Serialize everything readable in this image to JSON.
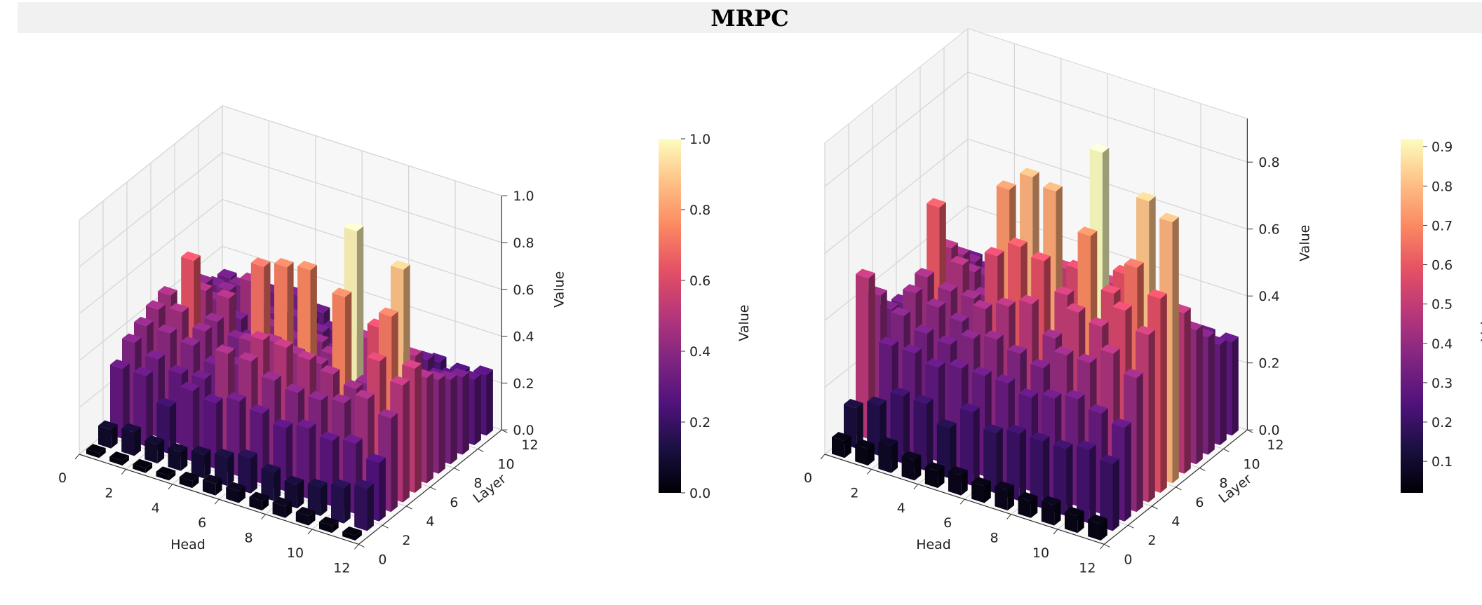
{
  "figure": {
    "title": "MRPC"
  },
  "chart_data": [
    {
      "type": "bar3d",
      "title": "",
      "xlabel": "Head",
      "ylabel": "Layer",
      "zlabel": "Value",
      "x_ticks": [
        "0",
        "2",
        "4",
        "6",
        "8",
        "10",
        "12"
      ],
      "y_ticks": [
        "0",
        "2",
        "4",
        "6",
        "8",
        "10",
        "12"
      ],
      "z_ticks": [
        "0.0",
        "0.2",
        "0.4",
        "0.6",
        "0.8",
        "1.0"
      ],
      "zlim": [
        0,
        1.0
      ],
      "colormap": "magma",
      "colorbar": {
        "label": "Value",
        "range": [
          0.0,
          1.0
        ],
        "ticks": [
          "0.0",
          "0.2",
          "0.4",
          "0.6",
          "0.8",
          "1.0"
        ]
      },
      "heads": [
        0,
        1,
        2,
        3,
        4,
        5,
        6,
        7,
        8,
        9,
        10,
        11
      ],
      "layers": [
        0,
        1,
        2,
        3,
        4,
        5,
        6,
        7,
        8,
        9,
        10,
        11
      ],
      "values": [
        [
          0.02,
          0.08,
          0.3,
          0.37,
          0.4,
          0.43,
          0.45,
          0.33,
          0.4,
          0.38,
          0.33,
          0.32
        ],
        [
          0.02,
          0.1,
          0.3,
          0.33,
          0.4,
          0.45,
          0.63,
          0.46,
          0.38,
          0.38,
          0.36,
          0.3
        ],
        [
          0.02,
          0.08,
          0.2,
          0.3,
          0.38,
          0.4,
          0.4,
          0.46,
          0.33,
          0.45,
          0.28,
          0.32
        ],
        [
          0.02,
          0.08,
          0.3,
          0.31,
          0.33,
          0.34,
          0.36,
          0.32,
          0.28,
          0.34,
          0.28,
          0.34
        ],
        [
          0.03,
          0.1,
          0.28,
          0.45,
          0.36,
          0.42,
          0.7,
          0.4,
          0.3,
          0.36,
          0.3,
          0.3
        ],
        [
          0.05,
          0.12,
          0.32,
          0.45,
          0.5,
          0.45,
          0.73,
          0.38,
          0.3,
          0.33,
          0.3,
          0.28
        ],
        [
          0.05,
          0.15,
          0.3,
          0.4,
          0.5,
          0.43,
          0.75,
          0.4,
          0.32,
          0.3,
          0.27,
          0.25
        ],
        [
          0.04,
          0.12,
          0.27,
          0.38,
          0.48,
          0.42,
          0.42,
          0.35,
          0.32,
          0.28,
          0.26,
          0.24
        ],
        [
          0.05,
          0.1,
          0.3,
          0.38,
          0.45,
          0.74,
          0.98,
          0.48,
          0.35,
          0.3,
          0.25,
          0.24
        ],
        [
          0.04,
          0.12,
          0.28,
          0.4,
          0.42,
          0.4,
          0.6,
          0.4,
          0.38,
          0.35,
          0.3,
          0.25
        ],
        [
          0.03,
          0.15,
          0.3,
          0.45,
          0.57,
          0.72,
          0.88,
          0.47,
          0.32,
          0.3,
          0.26,
          0.24
        ],
        [
          0.02,
          0.18,
          0.25,
          0.4,
          0.5,
          0.53,
          0.45,
          0.4,
          0.36,
          0.33,
          0.28,
          0.26
        ]
      ]
    },
    {
      "type": "bar3d",
      "title": "",
      "xlabel": "Head",
      "ylabel": "Layer",
      "zlabel": "Value",
      "x_ticks": [
        "0",
        "2",
        "4",
        "6",
        "8",
        "10",
        "12"
      ],
      "y_ticks": [
        "0",
        "2",
        "4",
        "6",
        "8",
        "10",
        "12"
      ],
      "z_ticks": [
        "0.0",
        "0.2",
        "0.4",
        "0.6",
        "0.8"
      ],
      "zlim": [
        0,
        0.93
      ],
      "colormap": "magma",
      "colorbar": {
        "label": "Value",
        "range": [
          0.02,
          0.92
        ],
        "ticks": [
          "0.1",
          "0.2",
          "0.3",
          "0.4",
          "0.5",
          "0.6",
          "0.7",
          "0.8",
          "0.9"
        ]
      },
      "heads": [
        0,
        1,
        2,
        3,
        4,
        5,
        6,
        7,
        8,
        9,
        10,
        11
      ],
      "layers": [
        0,
        1,
        2,
        3,
        4,
        5,
        6,
        7,
        8,
        9,
        10,
        11
      ],
      "values": [
        [
          0.05,
          0.12,
          0.48,
          0.4,
          0.33,
          0.32,
          0.3,
          0.28,
          0.3,
          0.32,
          0.3,
          0.28
        ],
        [
          0.05,
          0.15,
          0.3,
          0.36,
          0.4,
          0.42,
          0.6,
          0.45,
          0.4,
          0.35,
          0.3,
          0.28
        ],
        [
          0.08,
          0.2,
          0.3,
          0.33,
          0.38,
          0.4,
          0.45,
          0.4,
          0.36,
          0.33,
          0.3,
          0.28
        ],
        [
          0.06,
          0.2,
          0.28,
          0.32,
          0.36,
          0.4,
          0.38,
          0.36,
          0.35,
          0.32,
          0.3,
          0.27
        ],
        [
          0.05,
          0.15,
          0.3,
          0.36,
          0.42,
          0.55,
          0.72,
          0.48,
          0.38,
          0.34,
          0.3,
          0.28
        ],
        [
          0.06,
          0.22,
          0.3,
          0.38,
          0.45,
          0.6,
          0.78,
          0.5,
          0.4,
          0.35,
          0.3,
          0.28
        ],
        [
          0.05,
          0.18,
          0.3,
          0.36,
          0.48,
          0.58,
          0.76,
          0.5,
          0.4,
          0.34,
          0.3,
          0.27
        ],
        [
          0.06,
          0.2,
          0.28,
          0.34,
          0.4,
          0.5,
          0.55,
          0.45,
          0.36,
          0.32,
          0.28,
          0.26
        ],
        [
          0.05,
          0.2,
          0.3,
          0.4,
          0.5,
          0.7,
          0.92,
          0.5,
          0.4,
          0.33,
          0.28,
          0.26
        ],
        [
          0.06,
          0.2,
          0.32,
          0.4,
          0.48,
          0.55,
          0.58,
          0.46,
          0.38,
          0.34,
          0.3,
          0.27
        ],
        [
          0.05,
          0.22,
          0.3,
          0.45,
          0.55,
          0.65,
          0.82,
          0.48,
          0.4,
          0.35,
          0.3,
          0.28
        ],
        [
          0.05,
          0.2,
          0.28,
          0.4,
          0.5,
          0.58,
          0.78,
          0.48,
          0.4,
          0.35,
          0.3,
          0.28
        ]
      ]
    }
  ]
}
